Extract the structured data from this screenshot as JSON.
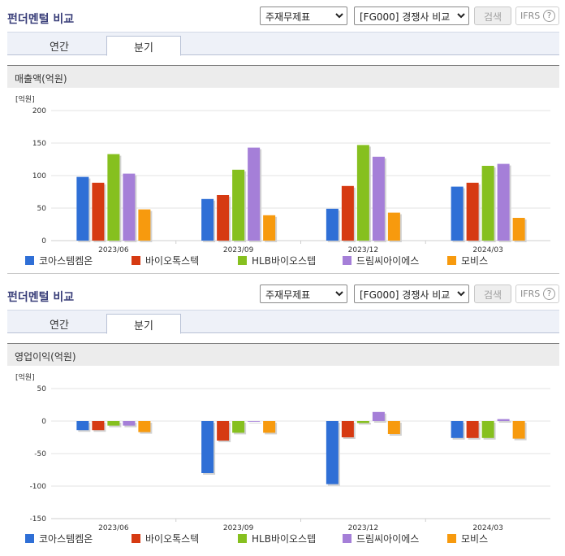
{
  "controls": {
    "statement_select": "주재무제표",
    "compare_select": "[FG000] 경쟁사 비교",
    "search_label": "검색",
    "ifrs_label": "IFRS",
    "help_label": "?"
  },
  "panels": [
    {
      "title": "펀더멘털 비교",
      "tabs": [
        "연간",
        "분기"
      ],
      "active_tab": "분기",
      "metric_label": "매출액(억원)"
    },
    {
      "title": "펀더멘털 비교",
      "tabs": [
        "연간",
        "분기"
      ],
      "active_tab": "분기",
      "metric_label": "영업이익(억원)"
    }
  ],
  "chart_data": [
    {
      "type": "bar",
      "unit_label": "[억원]",
      "categories": [
        "2023/06",
        "2023/09",
        "2023/12",
        "2024/03"
      ],
      "ylim": [
        0,
        200
      ],
      "yticks": [
        0,
        50,
        100,
        150,
        200
      ],
      "grid": true,
      "legend_position": "bottom",
      "series": [
        {
          "name": "코아스템켐온",
          "color": "#2f6fd6",
          "values": [
            98,
            64,
            49,
            83
          ]
        },
        {
          "name": "바이오톡스텍",
          "color": "#d63a12",
          "values": [
            89,
            70,
            84,
            89
          ]
        },
        {
          "name": "HLB바이오스텝",
          "color": "#86c01f",
          "values": [
            133,
            109,
            147,
            115
          ]
        },
        {
          "name": "드림씨아이에스",
          "color": "#a57fd8",
          "values": [
            103,
            143,
            129,
            118
          ]
        },
        {
          "name": "모비스",
          "color": "#f79a0e",
          "values": [
            48,
            39,
            43,
            35
          ]
        }
      ]
    },
    {
      "type": "bar",
      "unit_label": "[억원]",
      "categories": [
        "2023/06",
        "2023/09",
        "2023/12",
        "2024/03"
      ],
      "ylim": [
        -150,
        50
      ],
      "yticks": [
        -150,
        -100,
        -50,
        0,
        50
      ],
      "grid": true,
      "legend_position": "bottom",
      "series": [
        {
          "name": "코아스템켐온",
          "color": "#2f6fd6",
          "values": [
            -14,
            -80,
            -97,
            -26
          ]
        },
        {
          "name": "바이오톡스텍",
          "color": "#d63a12",
          "values": [
            -14,
            -30,
            -25,
            -26
          ]
        },
        {
          "name": "HLB바이오스텝",
          "color": "#86c01f",
          "values": [
            -7,
            -18,
            -3,
            -26
          ]
        },
        {
          "name": "드림씨아이에스",
          "color": "#a57fd8",
          "values": [
            -7,
            0,
            14,
            3
          ]
        },
        {
          "name": "모비스",
          "color": "#f79a0e",
          "values": [
            -17,
            -18,
            -20,
            -27
          ]
        }
      ]
    }
  ]
}
